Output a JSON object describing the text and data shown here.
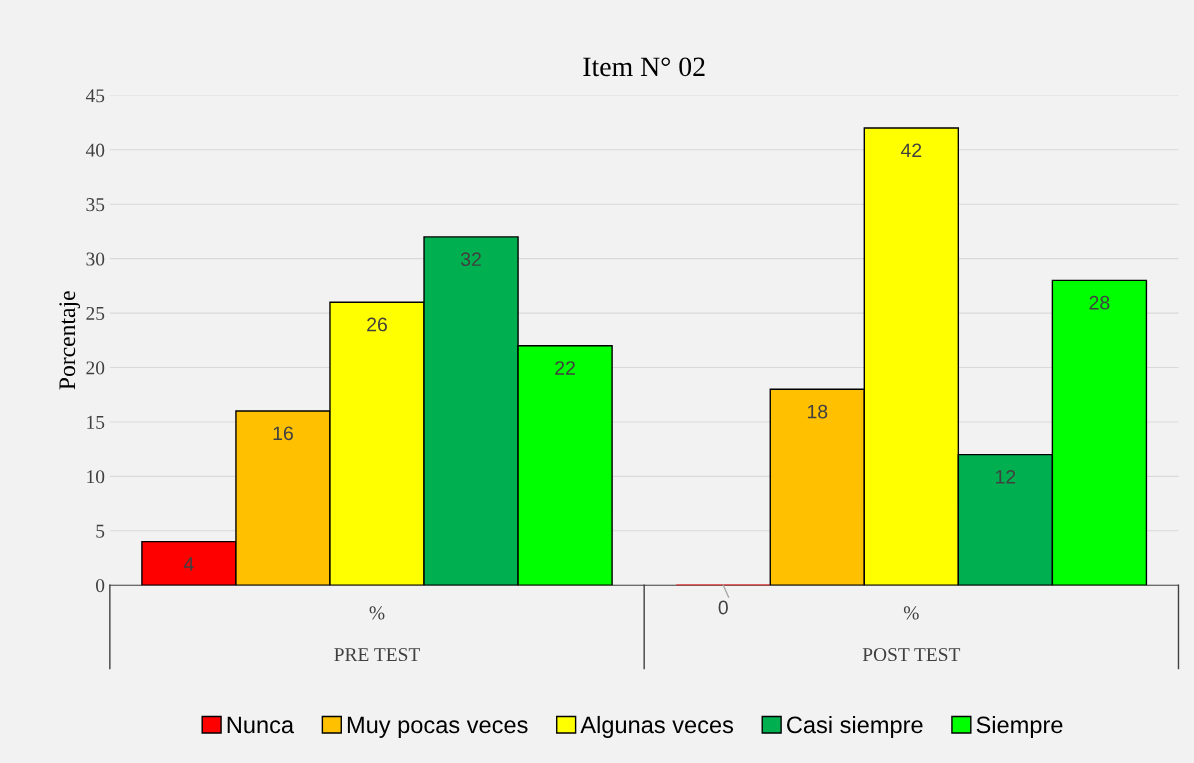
{
  "chart_data": {
    "type": "bar",
    "title": "Item N° 02",
    "ylabel": "Porcentaje",
    "categories": [
      "%",
      "%"
    ],
    "annotations": [
      "PRE TEST",
      "POST TEST"
    ],
    "series": [
      {
        "name": "Nunca",
        "color": "#ff0000",
        "values": [
          4,
          0
        ]
      },
      {
        "name": "Muy pocas veces",
        "color": "#ffc000",
        "values": [
          16,
          18
        ]
      },
      {
        "name": "Algunas veces",
        "color": "#ffff00",
        "values": [
          26,
          42
        ]
      },
      {
        "name": "Casi siempre",
        "color": "#00b050",
        "values": [
          32,
          12
        ]
      },
      {
        "name": "Siempre",
        "color": "#00ff00",
        "values": [
          22,
          28
        ]
      }
    ],
    "ylim": [
      0,
      45
    ],
    "yticks": [
      0,
      5,
      10,
      15,
      20,
      25,
      30,
      35,
      40,
      45
    ],
    "grid": "y",
    "legend": "bottom",
    "data_labels": true
  }
}
